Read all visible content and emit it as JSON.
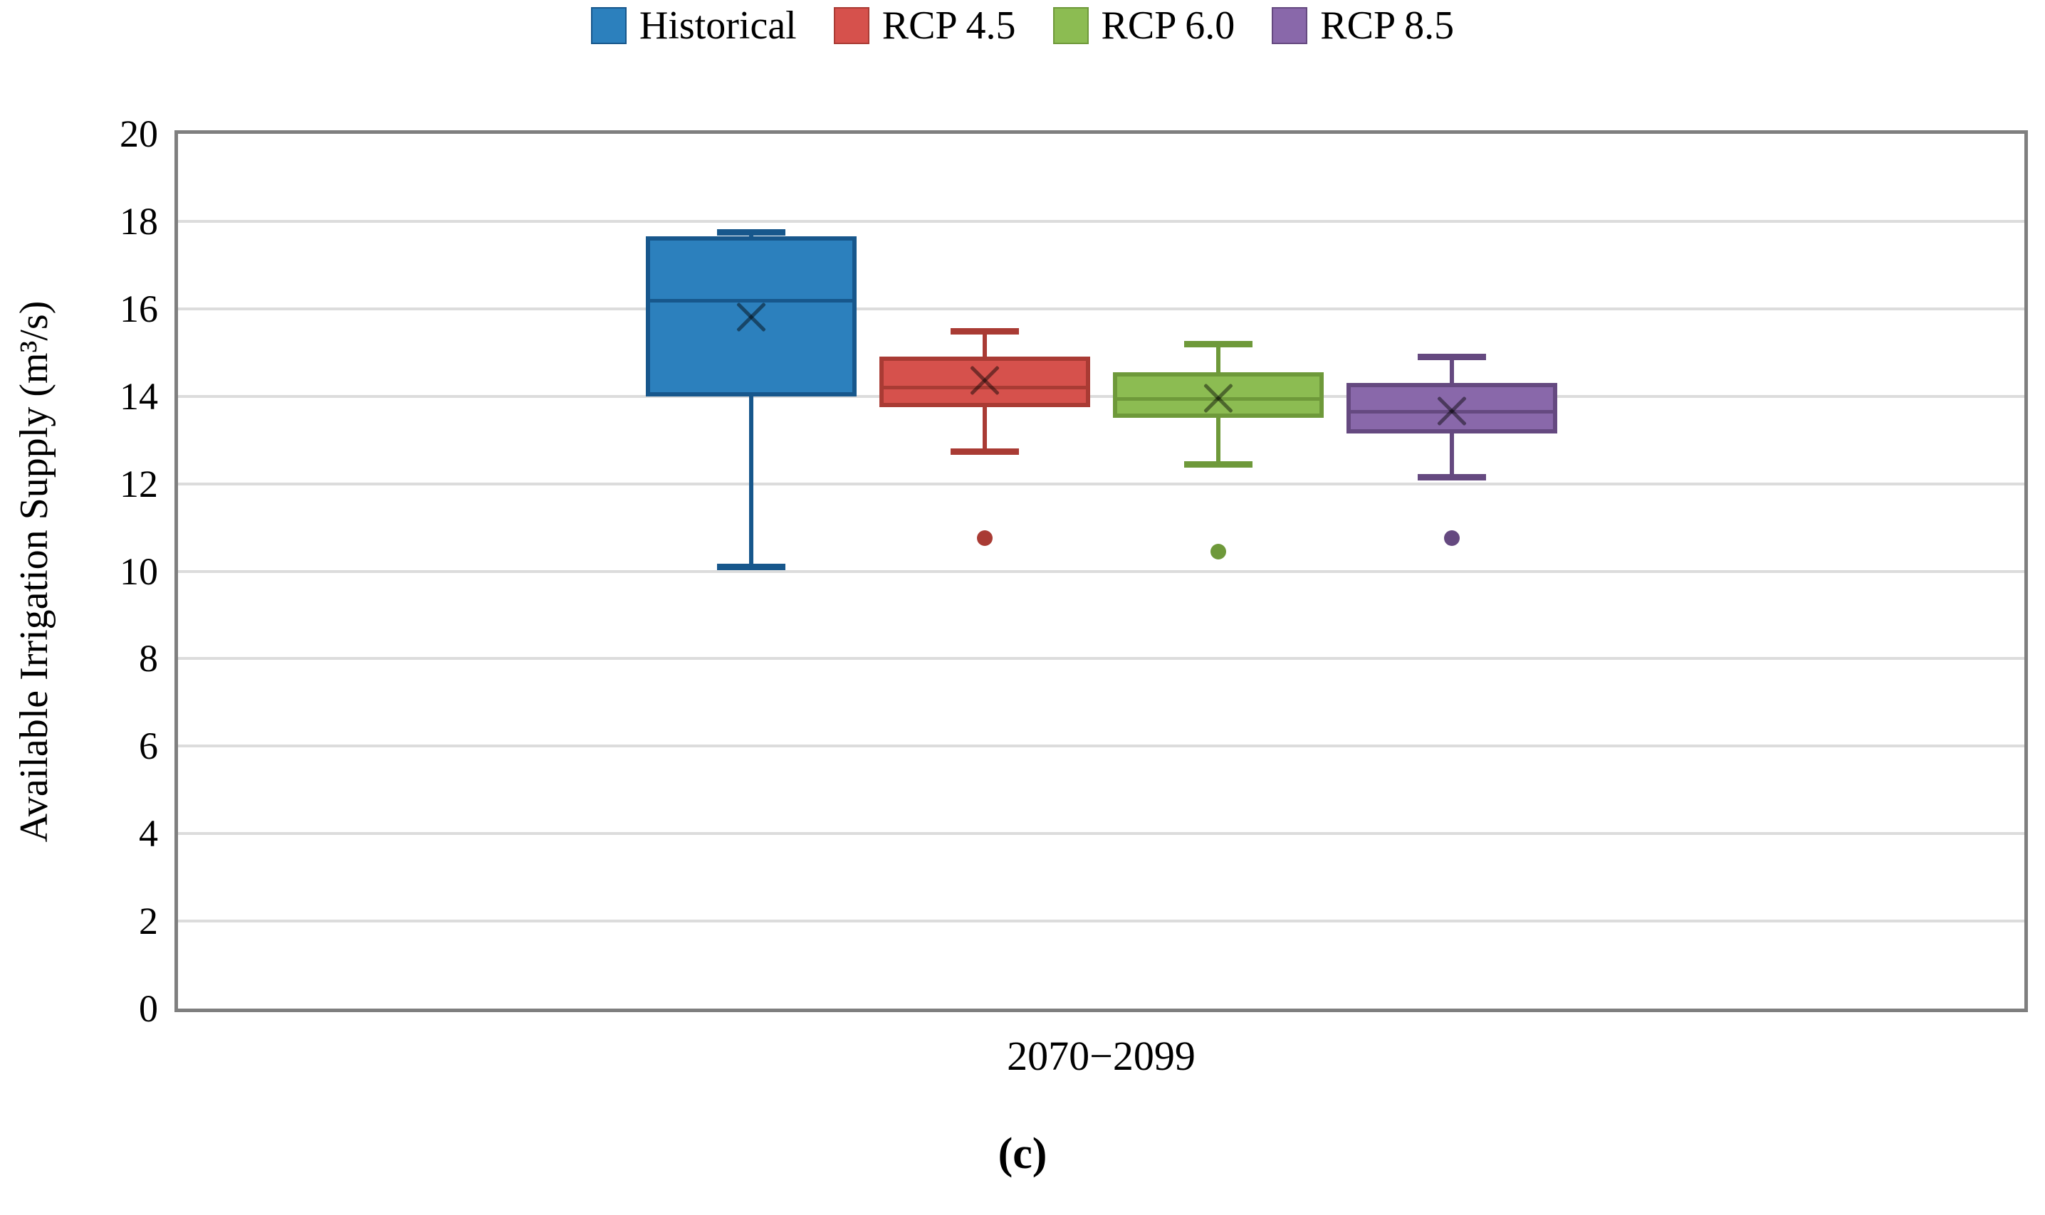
{
  "figure": {
    "caption": "(c)"
  },
  "y_axis": {
    "title": "Available Irrigation Supply (m³/s)",
    "min": 0,
    "max": 20,
    "tick_step": 2,
    "ticks": [
      0,
      2,
      4,
      6,
      8,
      10,
      12,
      14,
      16,
      18,
      20
    ]
  },
  "x_axis": {
    "category_label": "2070−2099"
  },
  "legend": {
    "position": "top",
    "items": [
      {
        "label": "Historical",
        "color": "#2c80bd",
        "border": "#17578c"
      },
      {
        "label": "RCP 4.5",
        "color": "#d6514c",
        "border": "#a93b34"
      },
      {
        "label": "RCP 6.0",
        "color": "#8cbc52",
        "border": "#6e993a"
      },
      {
        "label": "RCP 8.5",
        "color": "#8968aa",
        "border": "#654980"
      }
    ]
  },
  "chart_data": {
    "type": "boxplot",
    "title": "",
    "categories": [
      "2070−2099"
    ],
    "ylabel": "Available Irrigation Supply (m³/s)",
    "ylim": [
      0,
      20
    ],
    "grid": true,
    "legend_position": "top",
    "series": [
      {
        "name": "Historical",
        "color": "#2c80bd",
        "border": "#17578c",
        "min": 10.1,
        "q1": 14.0,
        "median": 16.2,
        "q3": 17.65,
        "max": 17.75,
        "mean": 15.8,
        "outliers": []
      },
      {
        "name": "RCP 4.5",
        "color": "#d6514c",
        "border": "#a93b34",
        "min": 12.75,
        "q1": 13.75,
        "median": 14.2,
        "q3": 14.9,
        "max": 15.5,
        "mean": 14.35,
        "outliers": [
          10.75
        ]
      },
      {
        "name": "RCP 6.0",
        "color": "#8cbc52",
        "border": "#6e993a",
        "min": 12.45,
        "q1": 13.5,
        "median": 13.95,
        "q3": 14.55,
        "max": 15.2,
        "mean": 13.95,
        "outliers": [
          10.45
        ]
      },
      {
        "name": "RCP 8.5",
        "color": "#8968aa",
        "border": "#654980",
        "min": 12.15,
        "q1": 13.15,
        "median": 13.65,
        "q3": 14.3,
        "max": 14.9,
        "mean": 13.65,
        "outliers": [
          10.75
        ]
      }
    ]
  }
}
